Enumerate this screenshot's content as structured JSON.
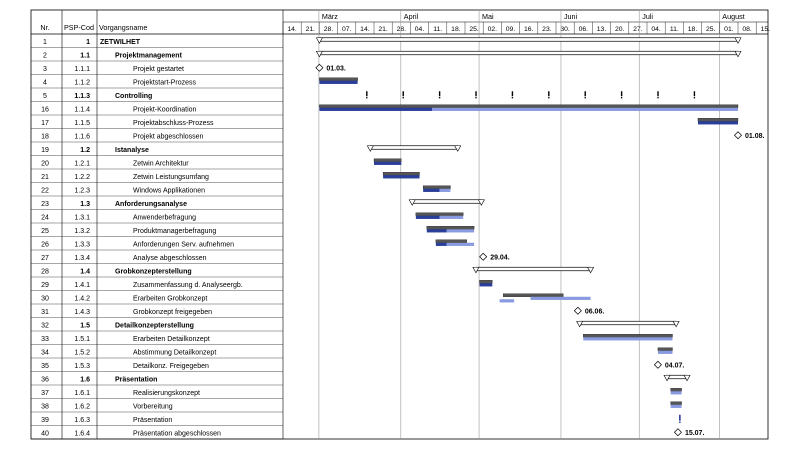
{
  "columns": {
    "nr": "Nr.",
    "psp": "PSP-Cod",
    "name": "Vorgangsname"
  },
  "months": [
    "März",
    "April",
    "Mai",
    "Juni",
    "Juli",
    "August"
  ],
  "weeks": [
    "14.",
    "21.",
    "28.",
    "07.",
    "14.",
    "21.",
    "28.",
    "04.",
    "11.",
    "18.",
    "25.",
    "02.",
    "09.",
    "16.",
    "23.",
    "30.",
    "06.",
    "13.",
    "20.",
    "27.",
    "04.",
    "11.",
    "18.",
    "25.",
    "01.",
    "08.",
    "15."
  ],
  "colors": {
    "baseline": "#555555",
    "actual": "#2a3f9a",
    "plan": "#8a9ae0",
    "summary_fill": "#ffffff",
    "grid": "#999999"
  },
  "tasks": [
    {
      "nr": "1",
      "psp": "1",
      "name": "ZETWILHET",
      "level": 0,
      "type": "summary",
      "start": 0.0,
      "end": 23.0
    },
    {
      "nr": "2",
      "psp": "1.1",
      "name": "Projektmanagement",
      "level": 1,
      "type": "summary",
      "start": 0.0,
      "end": 23.0
    },
    {
      "nr": "3",
      "psp": "1.1.1",
      "name": "Projekt gestartet",
      "level": 2,
      "type": "milestone",
      "at": 0.0,
      "label": "01.03."
    },
    {
      "nr": "4",
      "psp": "1.1.2",
      "name": "Projektstart-Prozess",
      "level": 2,
      "type": "task",
      "baseline": [
        0.0,
        2.1
      ],
      "actual": [
        0.0,
        2.1
      ]
    },
    {
      "nr": "5",
      "psp": "1.1.3",
      "name": "Controlling",
      "level": 1,
      "type": "recurring",
      "marks": [
        2.6,
        4.6,
        6.6,
        8.6,
        10.6,
        12.6,
        14.6,
        16.6,
        18.6,
        20.6
      ]
    },
    {
      "nr": "16",
      "psp": "1.1.4",
      "name": "Projekt-Koordination",
      "level": 2,
      "type": "task",
      "baseline": [
        0.0,
        23.0
      ],
      "actual": [
        0.0,
        6.2
      ],
      "plan": [
        6.2,
        23.0
      ]
    },
    {
      "nr": "17",
      "psp": "1.1.5",
      "name": "Projektabschluss-Prozess",
      "level": 2,
      "type": "task",
      "baseline": [
        20.8,
        23.0
      ],
      "actual": [
        20.8,
        23.0
      ]
    },
    {
      "nr": "18",
      "psp": "1.1.6",
      "name": "Projekt abgeschlossen",
      "level": 2,
      "type": "milestone",
      "at": 23.0,
      "label": "01.08."
    },
    {
      "nr": "19",
      "psp": "1.2",
      "name": "Istanalyse",
      "level": 1,
      "type": "summary",
      "start": 2.8,
      "end": 7.6
    },
    {
      "nr": "20",
      "psp": "1.2.1",
      "name": "Zetwin Architektur",
      "level": 2,
      "type": "task",
      "baseline": [
        3.0,
        4.5
      ],
      "actual": [
        3.0,
        4.5
      ]
    },
    {
      "nr": "21",
      "psp": "1.2.2",
      "name": "Zetwin Leistungsumfang",
      "level": 2,
      "type": "task",
      "baseline": [
        3.5,
        5.5
      ],
      "actual": [
        3.5,
        5.5
      ]
    },
    {
      "nr": "22",
      "psp": "1.2.3",
      "name": "Windows Applikationen",
      "level": 2,
      "type": "task",
      "baseline": [
        5.7,
        7.2
      ],
      "actual": [
        5.7,
        6.6
      ],
      "plan": [
        6.6,
        7.2
      ]
    },
    {
      "nr": "23",
      "psp": "1.3",
      "name": "Anforderungsanalyse",
      "level": 1,
      "type": "summary",
      "start": 5.1,
      "end": 8.9
    },
    {
      "nr": "24",
      "psp": "1.3.1",
      "name": "Anwenderbefragung",
      "level": 2,
      "type": "task",
      "baseline": [
        5.3,
        7.9
      ],
      "actual": [
        5.3,
        6.6
      ],
      "plan": [
        6.6,
        7.9
      ]
    },
    {
      "nr": "25",
      "psp": "1.3.2",
      "name": "Produktmanagerbefragung",
      "level": 2,
      "type": "task",
      "baseline": [
        5.9,
        8.5
      ],
      "actual": [
        5.9,
        7.0
      ],
      "plan": [
        7.0,
        8.5
      ]
    },
    {
      "nr": "26",
      "psp": "1.3.3",
      "name": "Anforderungen Serv. aufnehmen",
      "level": 2,
      "type": "task",
      "baseline": [
        6.4,
        8.1
      ],
      "actual": [
        6.4,
        7.0
      ],
      "plan": [
        7.0,
        8.5
      ]
    },
    {
      "nr": "27",
      "psp": "1.3.4",
      "name": "Analyse abgeschlossen",
      "level": 2,
      "type": "milestone",
      "at": 9.0,
      "label": "29.04."
    },
    {
      "nr": "28",
      "psp": "1.4",
      "name": "Grobkonzepterstellung",
      "level": 1,
      "type": "summary",
      "start": 8.6,
      "end": 14.9
    },
    {
      "nr": "29",
      "psp": "1.4.1",
      "name": "Zusammenfassung d. Analyseergb.",
      "level": 2,
      "type": "task",
      "baseline": [
        8.8,
        9.5
      ],
      "actual": [
        8.8,
        9.5
      ]
    },
    {
      "nr": "30",
      "psp": "1.4.2",
      "name": "Erarbeiten Grobkonzept",
      "level": 2,
      "type": "task",
      "baseline": [
        10.1,
        13.4
      ],
      "plan": [
        11.6,
        14.9
      ],
      "plan_only": [
        9.9,
        10.7
      ]
    },
    {
      "nr": "31",
      "psp": "1.4.3",
      "name": "Grobkonzept freigegeben",
      "level": 2,
      "type": "milestone",
      "at": 14.2,
      "label": "06.06."
    },
    {
      "nr": "32",
      "psp": "1.5",
      "name": "Detailkonzepterstellung",
      "level": 1,
      "type": "summary",
      "start": 14.3,
      "end": 19.6
    },
    {
      "nr": "33",
      "psp": "1.5.1",
      "name": "Erarbeiten Detailkonzept",
      "level": 2,
      "type": "task",
      "baseline": [
        14.5,
        19.4
      ],
      "plan": [
        14.5,
        19.4
      ]
    },
    {
      "nr": "34",
      "psp": "1.5.2",
      "name": "Abstimmung Detailkonzept",
      "level": 2,
      "type": "task",
      "baseline": [
        18.6,
        19.4
      ],
      "plan": [
        18.6,
        19.4
      ]
    },
    {
      "nr": "35",
      "psp": "1.5.3",
      "name": "Detailkonz. Freigegeben",
      "level": 2,
      "type": "milestone",
      "at": 18.6,
      "label": "04.07."
    },
    {
      "nr": "36",
      "psp": "1.6",
      "name": "Präsentation",
      "level": 1,
      "type": "summary",
      "start": 19.1,
      "end": 20.2
    },
    {
      "nr": "37",
      "psp": "1.6.1",
      "name": "Realisierungskonzept",
      "level": 2,
      "type": "task",
      "baseline": [
        19.3,
        19.9
      ],
      "plan": [
        19.3,
        19.9
      ]
    },
    {
      "nr": "38",
      "psp": "1.6.2",
      "name": "Vorbereitung",
      "level": 2,
      "type": "task",
      "baseline": [
        19.3,
        19.9
      ],
      "plan": [
        19.3,
        19.9
      ]
    },
    {
      "nr": "39",
      "psp": "1.6.3",
      "name": "Präsentation",
      "level": 2,
      "type": "mark",
      "at": 19.8
    },
    {
      "nr": "40",
      "psp": "1.6.4",
      "name": "Präsentation abgeschlossen",
      "level": 2,
      "type": "milestone",
      "at": 19.7,
      "label": "15.07."
    }
  ]
}
